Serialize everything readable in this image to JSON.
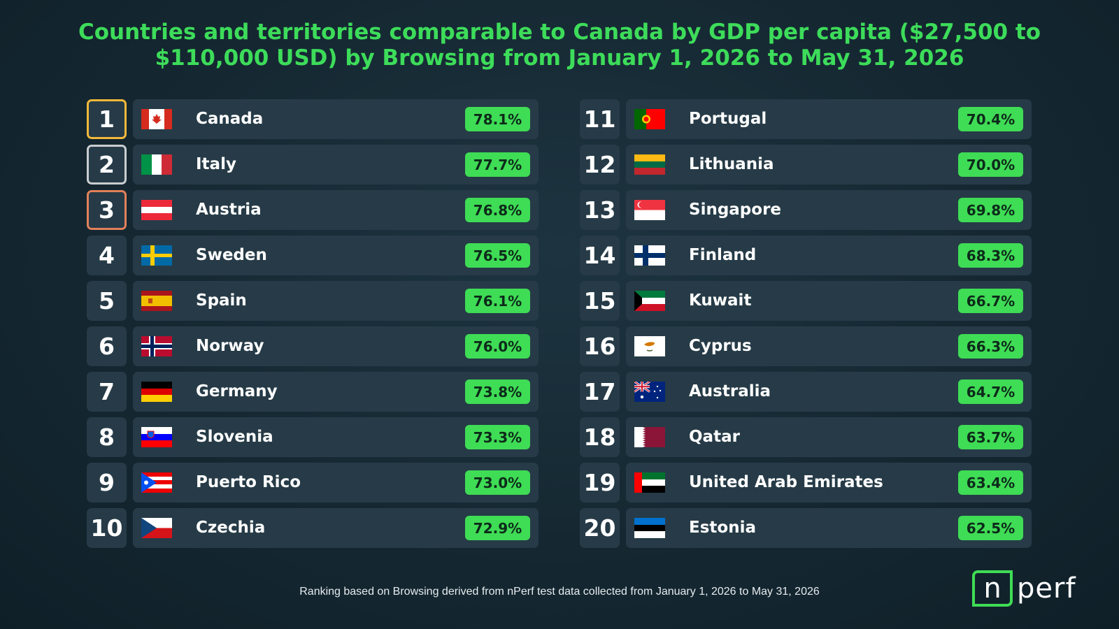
{
  "chart_data": {
    "type": "table",
    "title": "Countries and territories comparable to Canada by GDP per capita ($27,500 to $110,000 USD) by Browsing from January 1, 2026 to May 31, 2026",
    "footer": "Ranking based on Browsing derived from nPerf test data collected from January 1, 2026 to May 31, 2026",
    "rows": [
      {
        "rank": "1",
        "country": "Canada",
        "flag": "canada-flag",
        "value": "78.1%"
      },
      {
        "rank": "2",
        "country": "Italy",
        "flag": "italy-flag",
        "value": "77.7%"
      },
      {
        "rank": "3",
        "country": "Austria",
        "flag": "austria-flag",
        "value": "76.8%"
      },
      {
        "rank": "4",
        "country": "Sweden",
        "flag": "sweden-flag",
        "value": "76.5%"
      },
      {
        "rank": "5",
        "country": "Spain",
        "flag": "spain-flag",
        "value": "76.1%"
      },
      {
        "rank": "6",
        "country": "Norway",
        "flag": "norway-flag",
        "value": "76.0%"
      },
      {
        "rank": "7",
        "country": "Germany",
        "flag": "germany-flag",
        "value": "73.8%"
      },
      {
        "rank": "8",
        "country": "Slovenia",
        "flag": "slovenia-flag",
        "value": "73.3%"
      },
      {
        "rank": "9",
        "country": "Puerto Rico",
        "flag": "puerto-rico-flag",
        "value": "73.0%"
      },
      {
        "rank": "10",
        "country": "Czechia",
        "flag": "czechia-flag",
        "value": "72.9%"
      },
      {
        "rank": "11",
        "country": "Portugal",
        "flag": "portugal-flag",
        "value": "70.4%"
      },
      {
        "rank": "12",
        "country": "Lithuania",
        "flag": "lithuania-flag",
        "value": "70.0%"
      },
      {
        "rank": "13",
        "country": "Singapore",
        "flag": "singapore-flag",
        "value": "69.8%"
      },
      {
        "rank": "14",
        "country": "Finland",
        "flag": "finland-flag",
        "value": "68.3%"
      },
      {
        "rank": "15",
        "country": "Kuwait",
        "flag": "kuwait-flag",
        "value": "66.7%"
      },
      {
        "rank": "16",
        "country": "Cyprus",
        "flag": "cyprus-flag",
        "value": "66.3%"
      },
      {
        "rank": "17",
        "country": "Australia",
        "flag": "australia-flag",
        "value": "64.7%"
      },
      {
        "rank": "18",
        "country": "Qatar",
        "flag": "qatar-flag",
        "value": "63.7%"
      },
      {
        "rank": "19",
        "country": "United Arab Emirates",
        "flag": "uae-flag",
        "value": "63.4%"
      },
      {
        "rank": "20",
        "country": "Estonia",
        "flag": "estonia-flag",
        "value": "62.5%"
      }
    ]
  },
  "logo": {
    "box_letter": "n",
    "text": "perf"
  },
  "colors": {
    "accent": "#3ddc5a",
    "background": "#152832",
    "card": "#263b47",
    "gold": "#f2b83a",
    "silver": "#c9cdd1",
    "bronze": "#e2805a"
  }
}
